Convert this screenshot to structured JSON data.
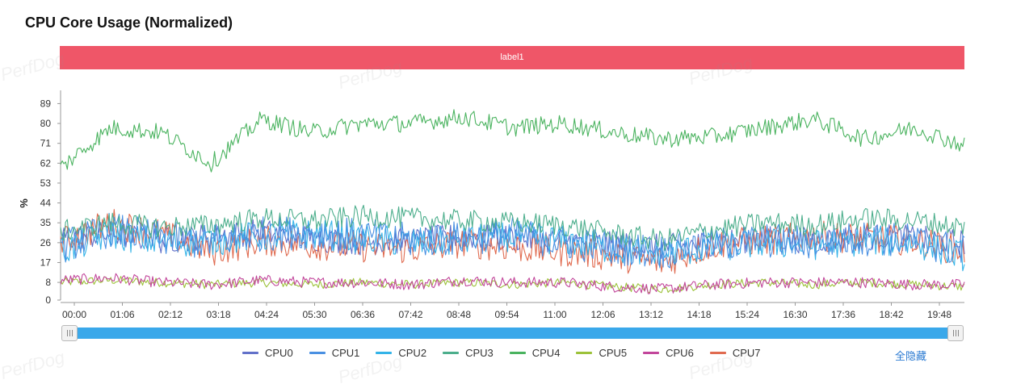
{
  "title": "CPU Core Usage (Normalized)",
  "label_bar": "label1",
  "watermark": "PerfDog",
  "hide_all": "全隐藏",
  "colors": {
    "CPU0": "#6271c9",
    "CPU1": "#4a90e2",
    "CPU2": "#33b3e8",
    "CPU3": "#4cae8c",
    "CPU4": "#4ab35f",
    "CPU5": "#9cc23a",
    "CPU6": "#c2469b",
    "CPU7": "#e06b50"
  },
  "chart_data": {
    "type": "line",
    "title": "CPU Core Usage (Normalized)",
    "ylabel": "%",
    "xlabel": "",
    "ylim": [
      0,
      95
    ],
    "yticks": [
      0,
      8,
      17,
      26,
      35,
      44,
      53,
      62,
      71,
      80,
      89
    ],
    "x": [
      "00:00",
      "01:06",
      "02:12",
      "03:18",
      "04:24",
      "05:30",
      "06:36",
      "07:42",
      "08:48",
      "09:54",
      "11:00",
      "12:06",
      "13:12",
      "14:18",
      "15:24",
      "16:30",
      "17:36",
      "18:42",
      "19:48"
    ],
    "grid": false,
    "legend_position": "bottom",
    "series": [
      {
        "name": "CPU0",
        "values": [
          28,
          30,
          27,
          29,
          31,
          28,
          26,
          27,
          29,
          28,
          27,
          25,
          24,
          26,
          28,
          27,
          29,
          28,
          26
        ]
      },
      {
        "name": "CPU1",
        "values": [
          24,
          32,
          28,
          26,
          30,
          31,
          29,
          27,
          28,
          30,
          26,
          24,
          22,
          25,
          27,
          26,
          28,
          27,
          22
        ]
      },
      {
        "name": "CPU2",
        "values": [
          22,
          30,
          26,
          27,
          29,
          30,
          28,
          26,
          27,
          29,
          27,
          23,
          21,
          24,
          26,
          25,
          27,
          26,
          20
        ]
      },
      {
        "name": "CPU3",
        "values": [
          31,
          35,
          33,
          34,
          37,
          36,
          38,
          37,
          36,
          35,
          34,
          30,
          27,
          32,
          35,
          34,
          37,
          36,
          33
        ]
      },
      {
        "name": "CPU4",
        "values": [
          60,
          78,
          76,
          62,
          82,
          76,
          80,
          80,
          83,
          78,
          80,
          76,
          73,
          74,
          78,
          82,
          73,
          78,
          70
        ]
      },
      {
        "name": "CPU5",
        "values": [
          8,
          9,
          8,
          7,
          8,
          7,
          8,
          7,
          8,
          7,
          8,
          6,
          5,
          7,
          8,
          7,
          8,
          7,
          6
        ]
      },
      {
        "name": "CPU6",
        "values": [
          9,
          10,
          8,
          7,
          9,
          8,
          8,
          7,
          9,
          8,
          8,
          6,
          5,
          7,
          8,
          8,
          8,
          7,
          7
        ]
      },
      {
        "name": "CPU7",
        "values": [
          26,
          35,
          30,
          22,
          27,
          25,
          24,
          23,
          26,
          24,
          22,
          20,
          17,
          25,
          27,
          29,
          28,
          27,
          22
        ]
      }
    ]
  }
}
